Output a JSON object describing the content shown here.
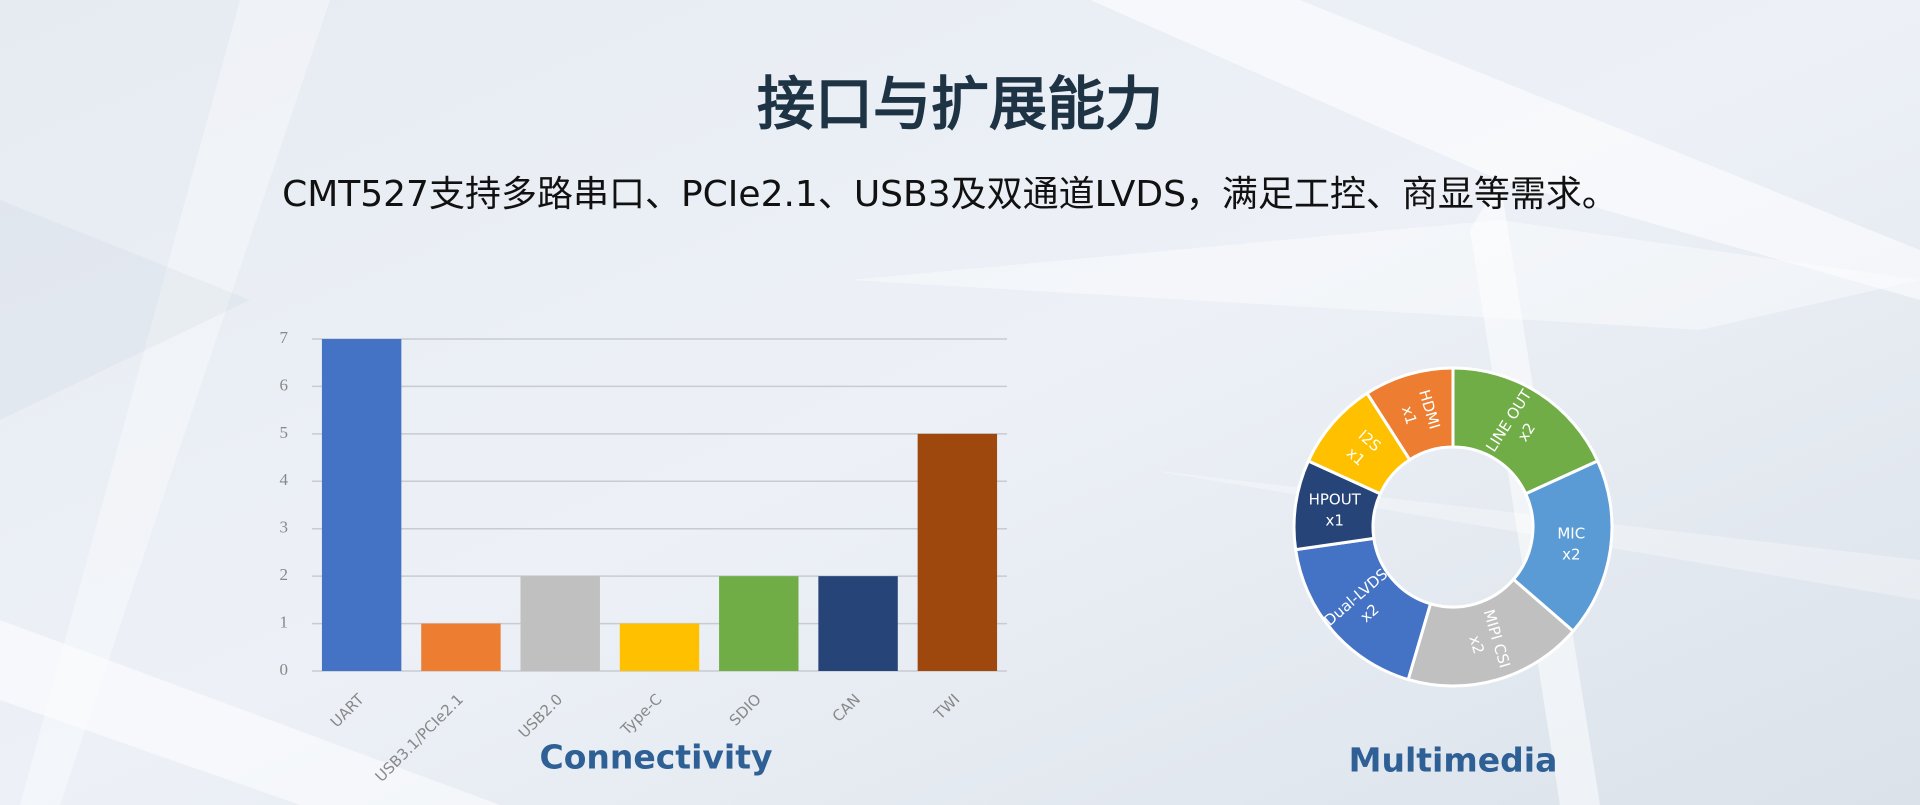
{
  "header": {
    "title": "接口与扩展能力",
    "subtitle": "CMT527支持多路串口、PCIe2.1、USB3及双通道LVDS，满足工控、商显等需求。"
  },
  "chart_data": [
    {
      "type": "bar",
      "title": "Connectivity",
      "categories": [
        "UART",
        "USB3.1/PCIe2.1",
        "USB2.0",
        "Type-C",
        "SDIO",
        "CAN",
        "TWI"
      ],
      "values": [
        7,
        1,
        2,
        1,
        2,
        2,
        5
      ],
      "colors": [
        "#4472c4",
        "#ed7d31",
        "#bfc0bf",
        "#ffc000",
        "#70ad47",
        "#264478",
        "#9e480e"
      ],
      "ylim": [
        0,
        7
      ],
      "yticks": [
        0,
        1,
        2,
        3,
        4,
        5,
        6,
        7
      ],
      "grid": true
    },
    {
      "type": "pie",
      "title": "Multimedia",
      "categories": [
        "LINE OUT",
        "MIC",
        "MIPI CSI",
        "Dual-LVDS",
        "HPOUT",
        "I2S",
        "HDMI"
      ],
      "values": [
        2,
        2,
        2,
        2,
        1,
        1,
        1
      ],
      "value_labels": [
        "x2",
        "x2",
        "x2",
        "x2",
        "x1",
        "x1",
        "x1"
      ],
      "colors": [
        "#70ad47",
        "#5b9bd5",
        "#c0c0c0",
        "#4472c4",
        "#264478",
        "#ffc000",
        "#ed7d31"
      ]
    }
  ]
}
